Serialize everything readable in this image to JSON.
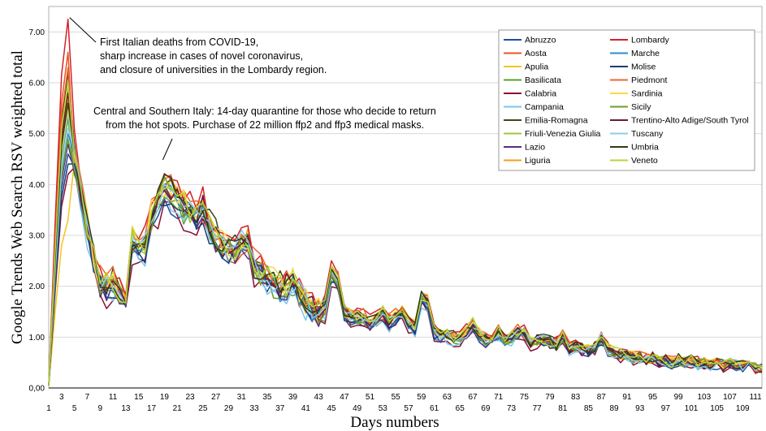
{
  "chart_data": {
    "type": "line",
    "xlabel": "Days numbers",
    "ylabel": "Google Trends Web Search RSV weighted total",
    "xlim": [
      1,
      112
    ],
    "ylim": [
      0,
      7.5
    ],
    "grid": true,
    "legend_placement": "top-right",
    "y_ticks": [
      0,
      1,
      2,
      3,
      4,
      5,
      6,
      7
    ],
    "y_tick_labels": [
      "0,00",
      "1.00",
      "2.00",
      "3.00",
      "4.00",
      "5.00",
      "6.00",
      "7.00"
    ],
    "x_ticks_top": [
      3,
      7,
      11,
      15,
      19,
      23,
      27,
      31,
      35,
      39,
      43,
      47,
      51,
      55,
      59,
      63,
      67,
      71,
      75,
      79,
      83,
      87,
      91,
      95,
      99,
      103,
      107,
      111
    ],
    "x_ticks_bottom": [
      1,
      5,
      9,
      13,
      17,
      21,
      25,
      29,
      33,
      37,
      41,
      45,
      49,
      53,
      57,
      61,
      65,
      69,
      73,
      77,
      81,
      85,
      89,
      93,
      97,
      101,
      105,
      109
    ],
    "annotations": [
      {
        "lines": [
          "First Italian deaths from COVID-19,",
          "sharp increase in cases of novel coronavirus,",
          "and closure of universities in the Lombardy region."
        ],
        "day": 4,
        "value": 7.25
      },
      {
        "lines": [
          "Central and Southern Italy: 14-day quarantine for those who decide to return",
          "from the hot spots. Purchase of 22 million ffp2 and ffp3 medical masks."
        ],
        "day": 18,
        "value": 4.5
      }
    ],
    "key_points": {
      "x": [
        1,
        4,
        5,
        6,
        7,
        8,
        9,
        10,
        11,
        12,
        13,
        14,
        15,
        16,
        17,
        18,
        19,
        20,
        21,
        22,
        23,
        24,
        25,
        26,
        27,
        28,
        29,
        30,
        31,
        32,
        33,
        34,
        35,
        36,
        37,
        38,
        39,
        40,
        41,
        42,
        43,
        44,
        45,
        46,
        47,
        48,
        49,
        50,
        51,
        52,
        53,
        54,
        55,
        56,
        57,
        58,
        59,
        60,
        61,
        62,
        63,
        64,
        65,
        66,
        67,
        68,
        69,
        70,
        71,
        72,
        73,
        74,
        75,
        76,
        77,
        78,
        79,
        80,
        81,
        82,
        83,
        84,
        85,
        86,
        87,
        88,
        89,
        90,
        91,
        92,
        93,
        94,
        95,
        96,
        97,
        98,
        99,
        100,
        101,
        102,
        103,
        104,
        105,
        106,
        107,
        108,
        109,
        110,
        111,
        112
      ],
      "base": [
        0.05,
        5.2,
        4.6,
        3.9,
        3.2,
        2.6,
        2.1,
        2.0,
        2.1,
        1.9,
        1.8,
        2.9,
        2.6,
        2.8,
        3.4,
        3.7,
        4.0,
        3.9,
        3.8,
        3.6,
        3.5,
        3.5,
        3.6,
        3.2,
        3.0,
        2.9,
        2.8,
        2.7,
        2.9,
        2.9,
        2.4,
        2.3,
        2.2,
        2.1,
        2.0,
        2.0,
        2.1,
        1.9,
        1.7,
        1.6,
        1.5,
        1.6,
        2.3,
        2.1,
        1.5,
        1.4,
        1.4,
        1.4,
        1.3,
        1.4,
        1.5,
        1.3,
        1.4,
        1.5,
        1.3,
        1.2,
        1.8,
        1.7,
        1.1,
        1.05,
        1.05,
        1.0,
        1.0,
        1.1,
        1.25,
        1.05,
        0.95,
        1.0,
        1.1,
        0.95,
        1.0,
        1.1,
        1.1,
        0.9,
        0.95,
        0.95,
        0.9,
        0.85,
        1.0,
        0.8,
        0.85,
        0.8,
        0.75,
        0.8,
        1.0,
        0.75,
        0.7,
        0.65,
        0.65,
        0.6,
        0.6,
        0.55,
        0.6,
        0.55,
        0.55,
        0.5,
        0.55,
        0.5,
        0.55,
        0.5,
        0.5,
        0.45,
        0.5,
        0.45,
        0.5,
        0.45,
        0.45,
        0.45,
        0.4,
        0.4
      ]
    },
    "series": [
      {
        "name": "Abruzzo",
        "color": "#1f4fa0",
        "scale": 0.94,
        "peak": 4.6,
        "noise": 1
      },
      {
        "name": "Aosta",
        "color": "#e8551f",
        "scale": 0.97,
        "peak": 6.6,
        "noise": 2
      },
      {
        "name": "Apulia",
        "color": "#f2c51a",
        "scale": 1.0,
        "peak": 3.3,
        "noise": 3
      },
      {
        "name": "Basilicata",
        "color": "#5aa02c",
        "scale": 0.96,
        "peak": 5.3,
        "noise": 4
      },
      {
        "name": "Calabria",
        "color": "#8a1035",
        "scale": 0.9,
        "peak": 4.2,
        "noise": 5
      },
      {
        "name": "Campania",
        "color": "#79c6ee",
        "scale": 0.93,
        "peak": 5.4,
        "noise": 6
      },
      {
        "name": "Emilia-Romagna",
        "color": "#374a1a",
        "scale": 1.03,
        "peak": 6.2,
        "noise": 7
      },
      {
        "name": "Friuli-Venezia Giulia",
        "color": "#9bc83b",
        "scale": 0.99,
        "peak": 5.9,
        "noise": 8
      },
      {
        "name": "Lazio",
        "color": "#5a2d82",
        "scale": 0.95,
        "peak": 4.8,
        "noise": 9
      },
      {
        "name": "Liguria",
        "color": "#f59e1c",
        "scale": 1.01,
        "peak": 5.7,
        "noise": 10
      },
      {
        "name": "Lombardy",
        "color": "#d2232a",
        "scale": 1.06,
        "peak": 7.25,
        "noise": 11
      },
      {
        "name": "Marche",
        "color": "#2a8fc4",
        "scale": 0.97,
        "peak": 5.0,
        "noise": 12
      },
      {
        "name": "Molise",
        "color": "#173c7a",
        "scale": 0.95,
        "peak": 4.4,
        "noise": 13
      },
      {
        "name": "Piedmont",
        "color": "#ef6430",
        "scale": 1.04,
        "peak": 6.3,
        "noise": 14
      },
      {
        "name": "Sardinia",
        "color": "#fad94a",
        "scale": 1.02,
        "peak": 5.5,
        "noise": 15
      },
      {
        "name": "Sicily",
        "color": "#6e9e24",
        "scale": 0.98,
        "peak": 4.9,
        "noise": 16
      },
      {
        "name": "Trentino-Alto Adige/South Tyrol",
        "color": "#6a1a2c",
        "scale": 1.0,
        "peak": 5.8,
        "noise": 17
      },
      {
        "name": "Tuscany",
        "color": "#8ecbef",
        "scale": 0.99,
        "peak": 5.1,
        "noise": 18
      },
      {
        "name": "Umbria",
        "color": "#2e3b17",
        "scale": 1.0,
        "peak": 5.6,
        "noise": 19
      },
      {
        "name": "Veneto",
        "color": "#b5d63a",
        "scale": 1.02,
        "peak": 6.0,
        "noise": 20
      }
    ]
  }
}
